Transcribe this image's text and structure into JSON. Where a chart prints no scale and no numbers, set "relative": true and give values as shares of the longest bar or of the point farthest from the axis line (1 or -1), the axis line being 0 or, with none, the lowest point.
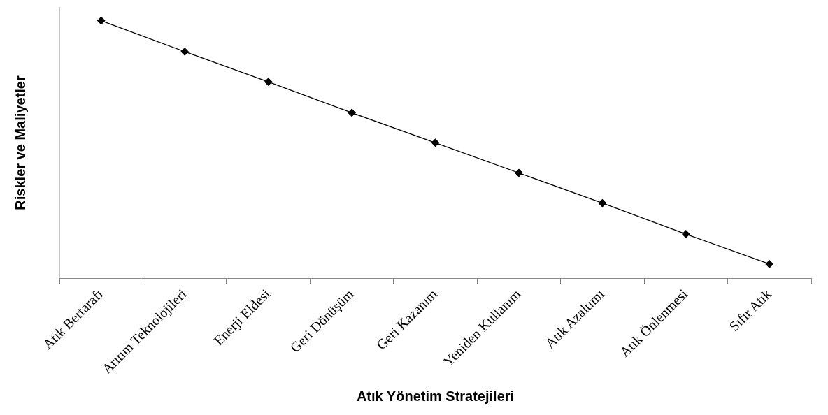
{
  "chart_data": {
    "type": "line",
    "xlabel": "Atık Yönetim Stratejileri",
    "ylabel": "Riskler ve Maliyetler",
    "relative": true,
    "categories": [
      "Atık Bertarafı",
      "Arıtım Teknolojileri",
      "Enerji Eldesi",
      "Geri Dönüşüm",
      "Geri Kazanım",
      "Yeniden Kullanım",
      "Atık Azaltımı",
      "Atık Önlenmesi",
      "Sıfır Atık"
    ],
    "series": [
      {
        "color": "#000000",
        "values": [
          1,
          0.88,
          0.763,
          0.643,
          0.527,
          0.41,
          0.293,
          0.173,
          0.057
        ]
      }
    ],
    "marker": "diamond",
    "line_style": "solid",
    "grid": false,
    "legend": false
  }
}
